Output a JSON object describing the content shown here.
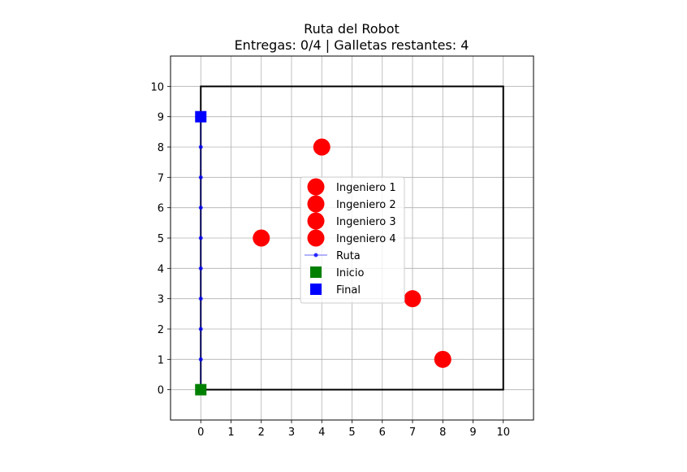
{
  "chart_data": {
    "type": "scatter",
    "title": "Ruta del Robot",
    "subtitle": "Entregas: 0/4 | Galletas restantes: 4",
    "xlabel": "",
    "ylabel": "",
    "xlim": [
      -1,
      11
    ],
    "ylim": [
      -1,
      11
    ],
    "xticks": [
      0,
      1,
      2,
      3,
      4,
      5,
      6,
      7,
      8,
      9,
      10
    ],
    "yticks": [
      0,
      1,
      2,
      3,
      4,
      5,
      6,
      7,
      8,
      9,
      10
    ],
    "grid": true,
    "legend_position": "center",
    "boundary": {
      "x": [
        0,
        10,
        10,
        0,
        0
      ],
      "y": [
        0,
        0,
        10,
        10,
        0
      ],
      "color": "#000000"
    },
    "series": [
      {
        "name": "Ingeniero 1",
        "kind": "marker",
        "marker": "circle",
        "color": "#ff0000",
        "points": [
          [
            4,
            8
          ]
        ]
      },
      {
        "name": "Ingeniero 2",
        "kind": "marker",
        "marker": "circle",
        "color": "#ff0000",
        "points": [
          [
            2,
            5
          ]
        ]
      },
      {
        "name": "Ingeniero 3",
        "kind": "marker",
        "marker": "circle",
        "color": "#ff0000",
        "points": [
          [
            7,
            3
          ]
        ]
      },
      {
        "name": "Ingeniero 4",
        "kind": "marker",
        "marker": "circle",
        "color": "#ff0000",
        "points": [
          [
            8,
            1
          ]
        ]
      },
      {
        "name": "Ruta",
        "kind": "line",
        "marker": "dot",
        "color": "#0000ff",
        "points": [
          [
            0,
            0
          ],
          [
            0,
            1
          ],
          [
            0,
            2
          ],
          [
            0,
            3
          ],
          [
            0,
            4
          ],
          [
            0,
            5
          ],
          [
            0,
            6
          ],
          [
            0,
            7
          ],
          [
            0,
            8
          ],
          [
            0,
            9
          ]
        ]
      },
      {
        "name": "Inicio",
        "kind": "marker",
        "marker": "square",
        "color": "#008000",
        "points": [
          [
            0,
            0
          ]
        ]
      },
      {
        "name": "Final",
        "kind": "marker",
        "marker": "square",
        "color": "#0000ff",
        "points": [
          [
            0,
            9
          ]
        ]
      }
    ]
  }
}
